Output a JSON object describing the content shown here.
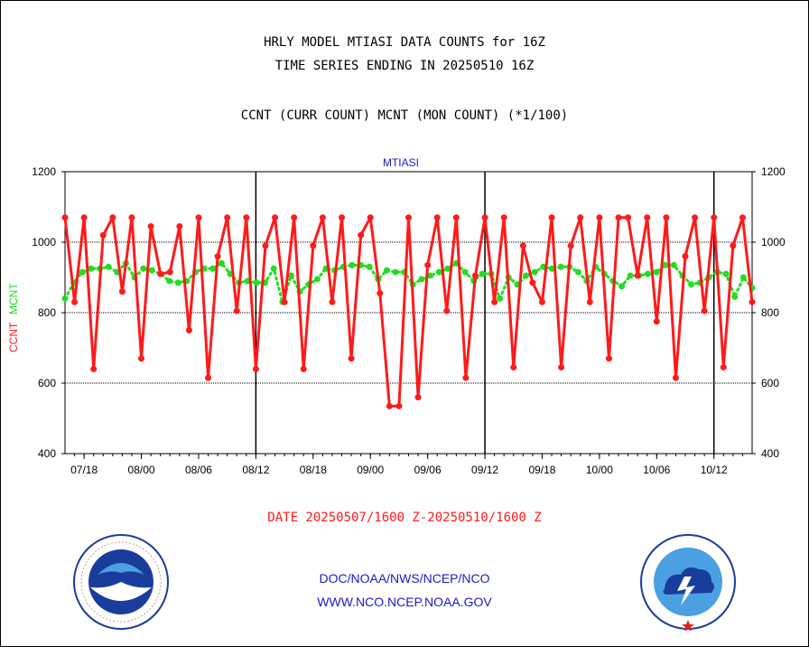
{
  "titles": {
    "line1": "HRLY MODEL MTIASI DATA COUNTS for 16Z",
    "line2": "TIME SERIES ENDING IN 20250510 16Z",
    "line3": "CCNT (CURR COUNT) MCNT (MON COUNT) (*1/100)"
  },
  "colors": {
    "ccnt": "#ff1a1a",
    "mcnt": "#22dd22",
    "panel_label": "#1a1acc",
    "footer": "#1a1acc",
    "date": "#ff1a1a"
  },
  "icons": {
    "noaa": "noaa-logo-icon",
    "nws": "nws-logo-icon"
  },
  "chart_data": {
    "type": "line",
    "panel_label": "MTIASI",
    "ylabel_ccnt": "CCNT",
    "ylabel_mcnt": "MCNT",
    "ylim": [
      400,
      1200
    ],
    "yticks": [
      400,
      600,
      800,
      1000,
      1200
    ],
    "gridlines_y": [
      600,
      800,
      1000
    ],
    "x_tick_labels": [
      "07/18",
      "08/00",
      "08/06",
      "08/12",
      "08/18",
      "09/00",
      "09/06",
      "09/12",
      "09/18",
      "10/00",
      "10/06",
      "10/12"
    ],
    "day_boundaries": [
      "08/12",
      "09/12",
      "10/12"
    ],
    "x_start": "07/16",
    "x_end": "10/16",
    "grid": true,
    "series": [
      {
        "name": "CCNT",
        "values": [
          1070,
          830,
          1070,
          640,
          1020,
          1070,
          860,
          1070,
          670,
          1045,
          910,
          915,
          1045,
          750,
          1070,
          615,
          960,
          1070,
          805,
          1070,
          640,
          990,
          1070,
          830,
          1070,
          640,
          990,
          1070,
          830,
          1070,
          670,
          1020,
          1070,
          855,
          535,
          535,
          1070,
          560,
          935,
          1070,
          805,
          1070,
          615,
          905,
          1070,
          830,
          1070,
          645,
          990,
          885,
          830,
          1070,
          645,
          990,
          1070,
          830,
          1070,
          670,
          1070,
          1070,
          905,
          1070,
          775,
          1070,
          615,
          960,
          1070,
          805,
          1070,
          645,
          990,
          1070,
          830
        ]
      },
      {
        "name": "MCNT",
        "values": [
          840,
          885,
          915,
          925,
          925,
          930,
          915,
          940,
          900,
          925,
          920,
          910,
          890,
          885,
          890,
          915,
          925,
          925,
          940,
          910,
          885,
          890,
          885,
          885,
          925,
          830,
          905,
          860,
          880,
          895,
          925,
          920,
          930,
          935,
          935,
          930,
          895,
          920,
          915,
          915,
          880,
          895,
          905,
          915,
          925,
          940,
          915,
          890,
          910,
          910,
          840,
          900,
          880,
          905,
          915,
          930,
          925,
          930,
          930,
          915,
          890,
          930,
          910,
          890,
          875,
          905,
          905,
          910,
          915,
          935,
          935,
          905,
          880,
          885,
          900,
          915,
          910,
          845,
          900,
          870
        ]
      }
    ]
  },
  "footer": {
    "date_range": "DATE 20250507/1600 Z-20250510/1600 Z",
    "org_path": "DOC/NOAA/NWS/NCEP/NCO",
    "website": "WWW.NCO.NCEP.NOAA.GOV"
  }
}
